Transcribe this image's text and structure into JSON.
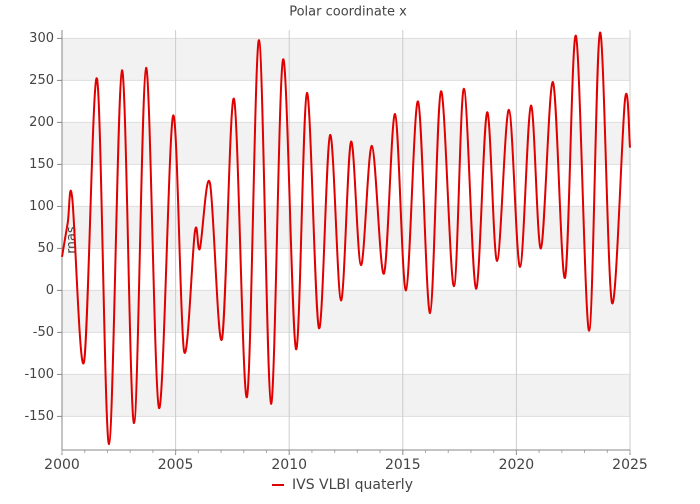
{
  "chart_data": {
    "type": "line",
    "title": "Polar coordinate x",
    "y_label": "mas",
    "x": [
      2000.0,
      2000.25,
      2000.45,
      2000.97,
      2001.54,
      2002.07,
      2002.64,
      2003.17,
      2003.7,
      2004.27,
      2004.89,
      2005.37,
      2005.85,
      2006.07,
      2006.51,
      2007.04,
      2007.57,
      2008.14,
      2008.67,
      2009.2,
      2009.73,
      2010.3,
      2010.78,
      2011.31,
      2011.8,
      2012.28,
      2012.72,
      2013.16,
      2013.64,
      2014.17,
      2014.66,
      2015.14,
      2015.67,
      2016.2,
      2016.68,
      2017.25,
      2017.69,
      2018.22,
      2018.71,
      2019.15,
      2019.67,
      2020.16,
      2020.64,
      2021.08,
      2021.61,
      2022.14,
      2022.62,
      2023.2,
      2023.68,
      2024.21,
      2024.78,
      2025.0
    ],
    "series": [
      {
        "name": "IVS VLBI quaterly",
        "color": "#e00000",
        "values": [
          40,
          80,
          110,
          -85,
          252,
          -183,
          262,
          -158,
          265,
          -140,
          208,
          -72,
          70,
          50,
          128,
          -58,
          228,
          -127,
          298,
          -135,
          275,
          -70,
          235,
          -45,
          185,
          -12,
          177,
          30,
          172,
          20,
          210,
          0,
          225,
          -27,
          237,
          5,
          240,
          2,
          212,
          35,
          215,
          28,
          220,
          50,
          248,
          15,
          303,
          -48,
          307,
          -15,
          227,
          170
        ]
      }
    ],
    "xlim": [
      2000,
      2025
    ],
    "xticks": [
      2000,
      2005,
      2010,
      2015,
      2020,
      2025
    ],
    "ylim": [
      -190,
      310
    ],
    "yticks": [
      -150,
      -100,
      -50,
      0,
      50,
      100,
      150,
      200,
      250,
      300
    ],
    "grid": true,
    "legend": "bottom"
  }
}
